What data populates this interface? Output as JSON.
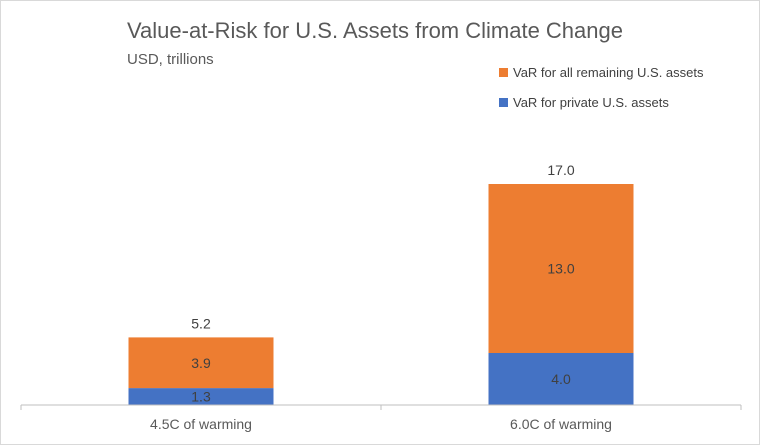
{
  "chart_data": {
    "type": "bar",
    "stacked": true,
    "title": "Value-at-Risk for U.S. Assets from Climate Change",
    "subtitle": "USD, trillions",
    "categories": [
      "4.5C of warming",
      "6.0C of warming"
    ],
    "series": [
      {
        "name": "VaR for private U.S. assets",
        "values": [
          1.3,
          4.0
        ],
        "labels": [
          "1.3",
          "4.0"
        ],
        "color": "#4472c4"
      },
      {
        "name": "VaR for all remaining U.S. assets",
        "values": [
          3.9,
          13.0
        ],
        "labels": [
          "3.9",
          "13.0"
        ],
        "color": "#ed7d31"
      }
    ],
    "totals": [
      "5.2",
      "17.0"
    ],
    "ylim": [
      0,
      18
    ],
    "grid": false,
    "legend_position": "top-right",
    "legend_order": [
      "VaR for all remaining U.S. assets",
      "VaR for private U.S. assets"
    ],
    "axis_color": "#bfbfbf"
  }
}
